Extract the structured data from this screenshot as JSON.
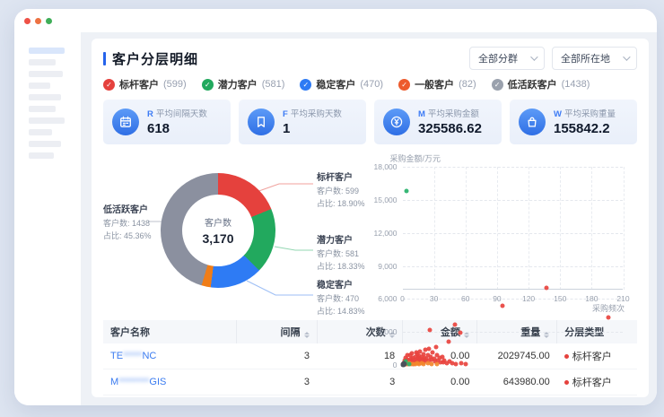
{
  "window": {
    "controls": [
      {
        "name": "close",
        "color": "#ee5146"
      },
      {
        "name": "minimize",
        "color": "#ed7242"
      },
      {
        "name": "maximize",
        "color": "#3fae58"
      }
    ]
  },
  "sidebar": {
    "bars": [
      {
        "w": 40,
        "active": true
      },
      {
        "w": 30,
        "active": false
      },
      {
        "w": 38,
        "active": false
      },
      {
        "w": 24,
        "active": false
      },
      {
        "w": 36,
        "active": false
      },
      {
        "w": 30,
        "active": false
      },
      {
        "w": 40,
        "active": false
      },
      {
        "w": 26,
        "active": false
      },
      {
        "w": 36,
        "active": false
      },
      {
        "w": 28,
        "active": false
      }
    ]
  },
  "panel": {
    "title": "客户分层明细",
    "filters": [
      {
        "label": "全部分群"
      },
      {
        "label": "全部所在地"
      }
    ],
    "legend": [
      {
        "label": "标杆客户",
        "count": "(599)",
        "color": "#e5413d"
      },
      {
        "label": "潜力客户",
        "count": "(581)",
        "color": "#22a95e"
      },
      {
        "label": "稳定客户",
        "count": "(470)",
        "color": "#2e7bf4"
      },
      {
        "label": "一般客户",
        "count": "(82)",
        "color": "#ed5b2d"
      },
      {
        "label": "低活跃客户",
        "count": "(1438)",
        "color": "#9aa1ad"
      }
    ],
    "kpis": [
      {
        "letter": "R",
        "label": "平均间隔天数",
        "value": "618",
        "icon": "calendar-icon"
      },
      {
        "letter": "F",
        "label": "平均采购天数",
        "value": "1",
        "icon": "bookmark-icon"
      },
      {
        "letter": "M",
        "label": "平均采购金额",
        "value": "325586.62",
        "icon": "yen-coin-icon"
      },
      {
        "letter": "W",
        "label": "平均采购重量",
        "value": "155842.2",
        "icon": "bag-icon"
      }
    ]
  },
  "chart_data": [
    {
      "type": "pie",
      "center_label": "客户数",
      "center_value": "3,170",
      "count_label": "客户数",
      "pct_label": "占比",
      "segments": [
        {
          "name": "标杆客户",
          "count": "599",
          "pct": "18.90%",
          "value": 18.9,
          "color": "#e5413d",
          "callout": "rt",
          "line_color": "#f0a19d"
        },
        {
          "name": "潜力客户",
          "count": "581",
          "pct": "18.33%",
          "value": 18.33,
          "color": "#22a95e",
          "callout": "rm",
          "line_color": "#93d7b2"
        },
        {
          "name": "稳定客户",
          "count": "470",
          "pct": "14.83%",
          "value": 14.83,
          "color": "#2e7bf4",
          "callout": "rb",
          "line_color": "#9cbef5"
        },
        {
          "name": "一般客户",
          "count": "82",
          "pct": "2.59%",
          "value": 2.59,
          "color": "#f07d17",
          "callout": null,
          "line_color": null
        },
        {
          "name": "低活跃客户",
          "count": "1438",
          "pct": "45.36%",
          "value": 45.36,
          "color": "#8b909f",
          "callout": "left",
          "line_color": "#bcc1cb"
        }
      ]
    },
    {
      "type": "scatter",
      "y_title": "采购金额/万元",
      "x_title": "采购频次",
      "xlim": [
        0,
        210
      ],
      "ylim": [
        0,
        18000
      ],
      "x_ticks": [
        0,
        30,
        60,
        90,
        120,
        150,
        180,
        210
      ],
      "y_ticks": [
        0,
        3000,
        6000,
        9000,
        12000,
        15000,
        18000
      ],
      "y_tick_labels": [
        "0",
        "3,000",
        "6,000",
        "9,000",
        "12,000",
        "15,000",
        "18,000"
      ],
      "grid": "dashed",
      "series": [
        {
          "name": "标杆客户",
          "color": "#e8433e",
          "points": [
            [
              1,
              60
            ],
            [
              1,
              200
            ],
            [
              2,
              120
            ],
            [
              2,
              420
            ],
            [
              3,
              90
            ],
            [
              3,
              260
            ],
            [
              3,
              640
            ],
            [
              4,
              180
            ],
            [
              4,
              380
            ],
            [
              5,
              120
            ],
            [
              5,
              520
            ],
            [
              5,
              900
            ],
            [
              6,
              240
            ],
            [
              6,
              70
            ],
            [
              7,
              420
            ],
            [
              7,
              860
            ],
            [
              8,
              160
            ],
            [
              8,
              560
            ],
            [
              9,
              320
            ],
            [
              9,
              1050
            ],
            [
              10,
              210
            ],
            [
              10,
              640
            ],
            [
              11,
              430
            ],
            [
              11,
              90
            ],
            [
              12,
              760
            ],
            [
              12,
              280
            ],
            [
              13,
              520
            ],
            [
              13,
              1150
            ],
            [
              14,
              360
            ],
            [
              14,
              940
            ],
            [
              15,
              200
            ],
            [
              15,
              620
            ],
            [
              16,
              820
            ],
            [
              16,
              390
            ],
            [
              17,
              1250
            ],
            [
              17,
              540
            ],
            [
              18,
              300
            ],
            [
              18,
              700
            ],
            [
              19,
              460
            ],
            [
              20,
              1000
            ],
            [
              20,
              240
            ],
            [
              21,
              640
            ],
            [
              22,
              380
            ],
            [
              22,
              1350
            ],
            [
              23,
              560
            ],
            [
              24,
              860
            ],
            [
              25,
              420
            ],
            [
              25,
              1500
            ],
            [
              26,
              3200
            ],
            [
              27,
              700
            ],
            [
              28,
              460
            ],
            [
              29,
              1100
            ],
            [
              30,
              560
            ],
            [
              31,
              300
            ],
            [
              32,
              1650
            ],
            [
              33,
              900
            ],
            [
              34,
              420
            ],
            [
              35,
              650
            ],
            [
              36,
              250
            ],
            [
              38,
              720
            ],
            [
              39,
              260
            ],
            [
              40,
              420
            ],
            [
              42,
              160
            ],
            [
              44,
              2100
            ],
            [
              45,
              300
            ],
            [
              47,
              180
            ],
            [
              50,
              3650
            ],
            [
              51,
              90
            ],
            [
              55,
              2950
            ],
            [
              56,
              130
            ],
            [
              60,
              60
            ],
            [
              95,
              5400
            ],
            [
              137,
              7000
            ],
            [
              196,
              4300
            ]
          ]
        },
        {
          "name": "一般客户",
          "color": "#f2862c",
          "points": [
            [
              2,
              80
            ],
            [
              4,
              60
            ],
            [
              6,
              160
            ],
            [
              8,
              90
            ],
            [
              10,
              120
            ],
            [
              12,
              60
            ],
            [
              14,
              150
            ],
            [
              16,
              100
            ],
            [
              18,
              170
            ],
            [
              20,
              80
            ],
            [
              24,
              130
            ],
            [
              28,
              90
            ],
            [
              33,
              70
            ]
          ]
        },
        {
          "name": "潜力客户",
          "color": "#27b26a",
          "points": [
            [
              4,
              15800
            ],
            [
              3,
              330
            ],
            [
              6,
              120
            ]
          ]
        },
        {
          "name": "低活跃客户",
          "color": "#4b4f5a",
          "points": [
            [
              0.5,
              40
            ],
            [
              1,
              80
            ],
            [
              1.5,
              25
            ],
            [
              2,
              55
            ],
            [
              0.8,
              120
            ],
            [
              1.2,
              160
            ]
          ]
        }
      ]
    }
  ],
  "table": {
    "columns": [
      {
        "label": "客户名称",
        "sortable": false,
        "align": "left",
        "width": "25%"
      },
      {
        "label": "间隔",
        "sortable": true,
        "align": "right",
        "width": "15%"
      },
      {
        "label": "次数",
        "sortable": true,
        "align": "right",
        "width": "16%"
      },
      {
        "label": "金额",
        "sortable": true,
        "align": "right",
        "width": "14%"
      },
      {
        "label": "重量",
        "sortable": true,
        "align": "right",
        "width": "15%"
      },
      {
        "label": "分层类型",
        "sortable": false,
        "align": "left",
        "width": "15%"
      }
    ],
    "rows": [
      {
        "name_prefix": "TE",
        "name_redacted": "*****",
        "name_suffix": "NC",
        "interval": "3",
        "times": "18",
        "amount": "0.00",
        "weight": "2029745.00",
        "type": "标杆客户",
        "type_color": "#e5413d"
      },
      {
        "name_prefix": "M",
        "name_redacted": "********",
        "name_suffix": "GIS",
        "interval": "3",
        "times": "3",
        "amount": "0.00",
        "weight": "643980.00",
        "type": "标杆客户",
        "type_color": "#e5413d"
      }
    ]
  }
}
